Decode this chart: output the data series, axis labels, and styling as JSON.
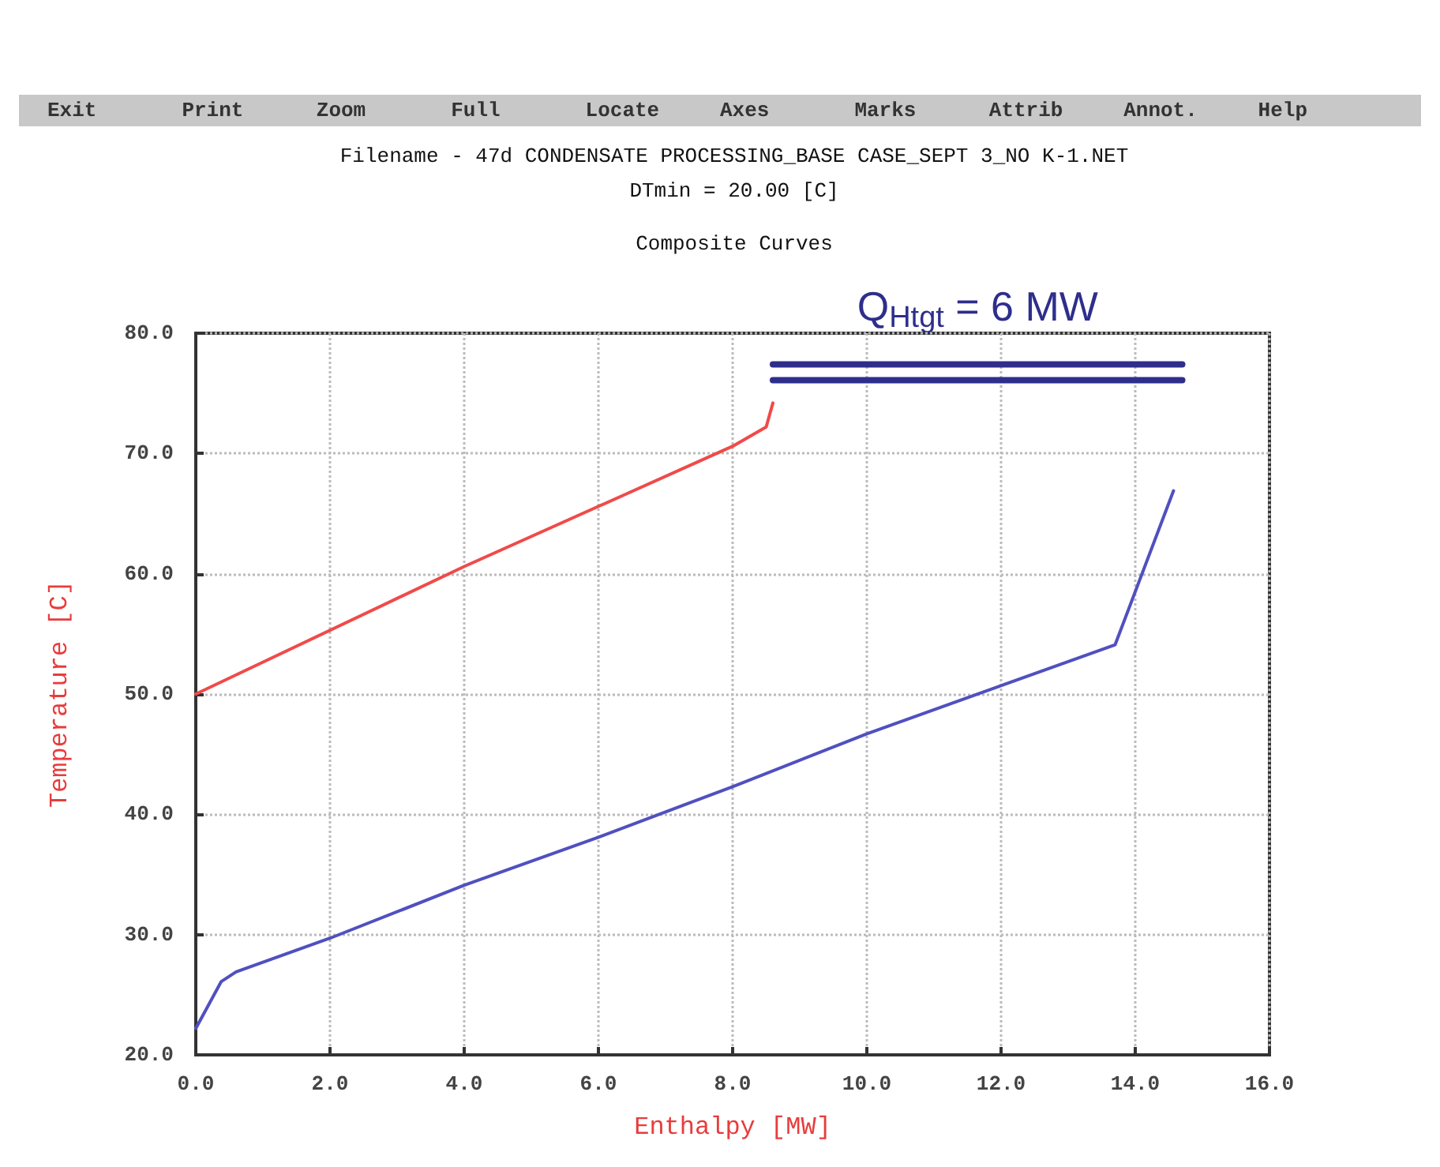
{
  "chart_data": {
    "type": "line",
    "title": "Composite Curves",
    "subtitle": "Filename - 47d CONDENSATE PROCESSING_BASE CASE_SEPT 3_NO K-1.NET\nDTmin = 20.00 [C]",
    "xlabel": "Enthalpy [MW]",
    "ylabel": "Temperature [C]",
    "annotations": [
      "Exit",
      "Print",
      "Zoom",
      "Full",
      "Locate",
      "Axes",
      "Marks",
      "Attrib",
      "Annot.",
      "Help",
      {
        "text": "Q$_{Htgt}$ = 6 MW",
        "x": 11.65,
        "y": 77.4
      }
    ],
    "xlim": [
      0,
      16
    ],
    "ylim": [
      20,
      80
    ],
    "xticks": [
      {
        "value": 0,
        "label": "0.0"
      },
      {
        "value": 2,
        "label": "2.0"
      },
      {
        "value": 4,
        "label": "4.0"
      },
      {
        "value": 6,
        "label": "6.0"
      },
      {
        "value": 8,
        "label": "8.0"
      },
      {
        "value": 10,
        "label": "10.0"
      },
      {
        "value": 12,
        "label": "12.0"
      },
      {
        "value": 14,
        "label": "14.0"
      },
      {
        "value": 16,
        "label": "16.0"
      }
    ],
    "yticks": [
      {
        "value": 20,
        "label": "20.0"
      },
      {
        "value": 30,
        "label": "30.0"
      },
      {
        "value": 40,
        "label": "40.0"
      },
      {
        "value": 50,
        "label": "50.0"
      },
      {
        "value": 60,
        "label": "60.0"
      },
      {
        "value": 70,
        "label": "70.0"
      },
      {
        "value": 80,
        "label": "80.0"
      }
    ],
    "grid": true,
    "marker": "none",
    "line_style": "solid",
    "series": [
      {
        "color": "#f04a4a",
        "x": [
          0,
          4,
          8,
          8.5,
          8.6
        ],
        "values": [
          50,
          60.6,
          70.6,
          72.2,
          74.2
        ]
      },
      {
        "color": "#5050c0",
        "x": [
          0,
          0.38,
          0.6,
          2,
          4,
          6,
          8,
          10,
          12,
          13.7,
          14.57
        ],
        "values": [
          22.2,
          26.1,
          26.9,
          29.7,
          34.1,
          38.1,
          42.3,
          46.7,
          50.7,
          54.1,
          66.9
        ]
      },
      {
        "color": "#2e2e8c",
        "x": [
          8.6,
          14.7
        ],
        "values": [
          77.4,
          77.4
        ]
      },
      {
        "color": "#2e2e8c",
        "x": [
          8.6,
          14.7
        ],
        "values": [
          76.1,
          76.1
        ]
      }
    ]
  }
}
